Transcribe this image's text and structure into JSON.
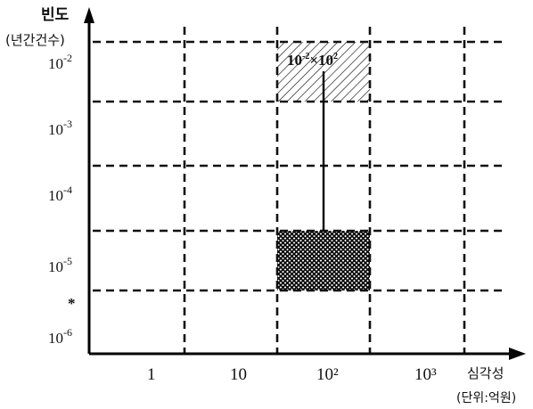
{
  "y_axis": {
    "title": "빈도",
    "unit": "(년간건수)",
    "tick_mantissa": "10",
    "ticks": [
      {
        "exp": "-2"
      },
      {
        "exp": "-3"
      },
      {
        "exp": "-4"
      },
      {
        "exp": "-5"
      },
      {
        "exp": "-6"
      }
    ],
    "glyph": "*"
  },
  "x_axis": {
    "title": "심각성",
    "unit": "(단위:억원)",
    "ticks": [
      "1",
      "10",
      "10²",
      "10³"
    ]
  },
  "annotation": {
    "base": "10",
    "exp1": "-2",
    "times": "×",
    "exp2": "2"
  },
  "colors": {
    "ink": "#111111",
    "background": "#ffffff"
  }
}
